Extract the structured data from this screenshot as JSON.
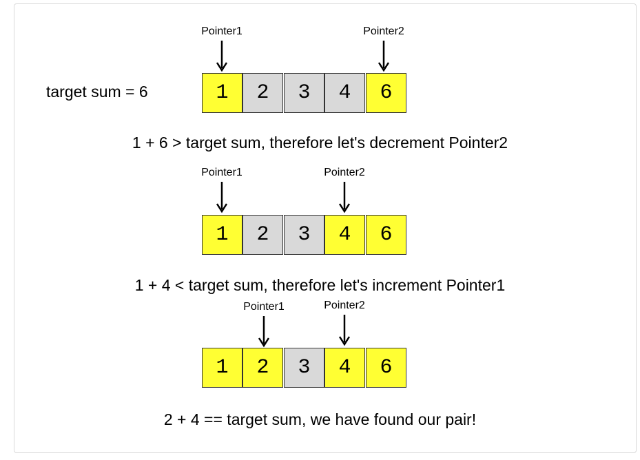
{
  "target_label": "target sum = 6",
  "colors": {
    "highlight": "#ffff33",
    "inactive": "#d9d9d9",
    "border": "#333333"
  },
  "steps": [
    {
      "cells": [
        "1",
        "2",
        "3",
        "4",
        "6"
      ],
      "highlighted": [
        true,
        false,
        false,
        false,
        true
      ],
      "pointers": [
        {
          "label": "Pointer1",
          "index": 0
        },
        {
          "label": "Pointer2",
          "index": 4
        }
      ],
      "caption": "1 + 6 > target sum, therefore let's decrement Pointer2"
    },
    {
      "cells": [
        "1",
        "2",
        "3",
        "4",
        "6"
      ],
      "highlighted": [
        true,
        false,
        false,
        true,
        true
      ],
      "pointers": [
        {
          "label": "Pointer1",
          "index": 0
        },
        {
          "label": "Pointer2",
          "index": 3
        }
      ],
      "caption": "1 + 4 < target sum, therefore let's increment Pointer1"
    },
    {
      "cells": [
        "1",
        "2",
        "3",
        "4",
        "6"
      ],
      "highlighted": [
        true,
        true,
        false,
        true,
        true
      ],
      "pointers": [
        {
          "label": "Pointer1",
          "index": 1
        },
        {
          "label": "Pointer2",
          "index": 3
        }
      ],
      "caption": "2 + 4 == target sum, we have found our pair!"
    }
  ]
}
